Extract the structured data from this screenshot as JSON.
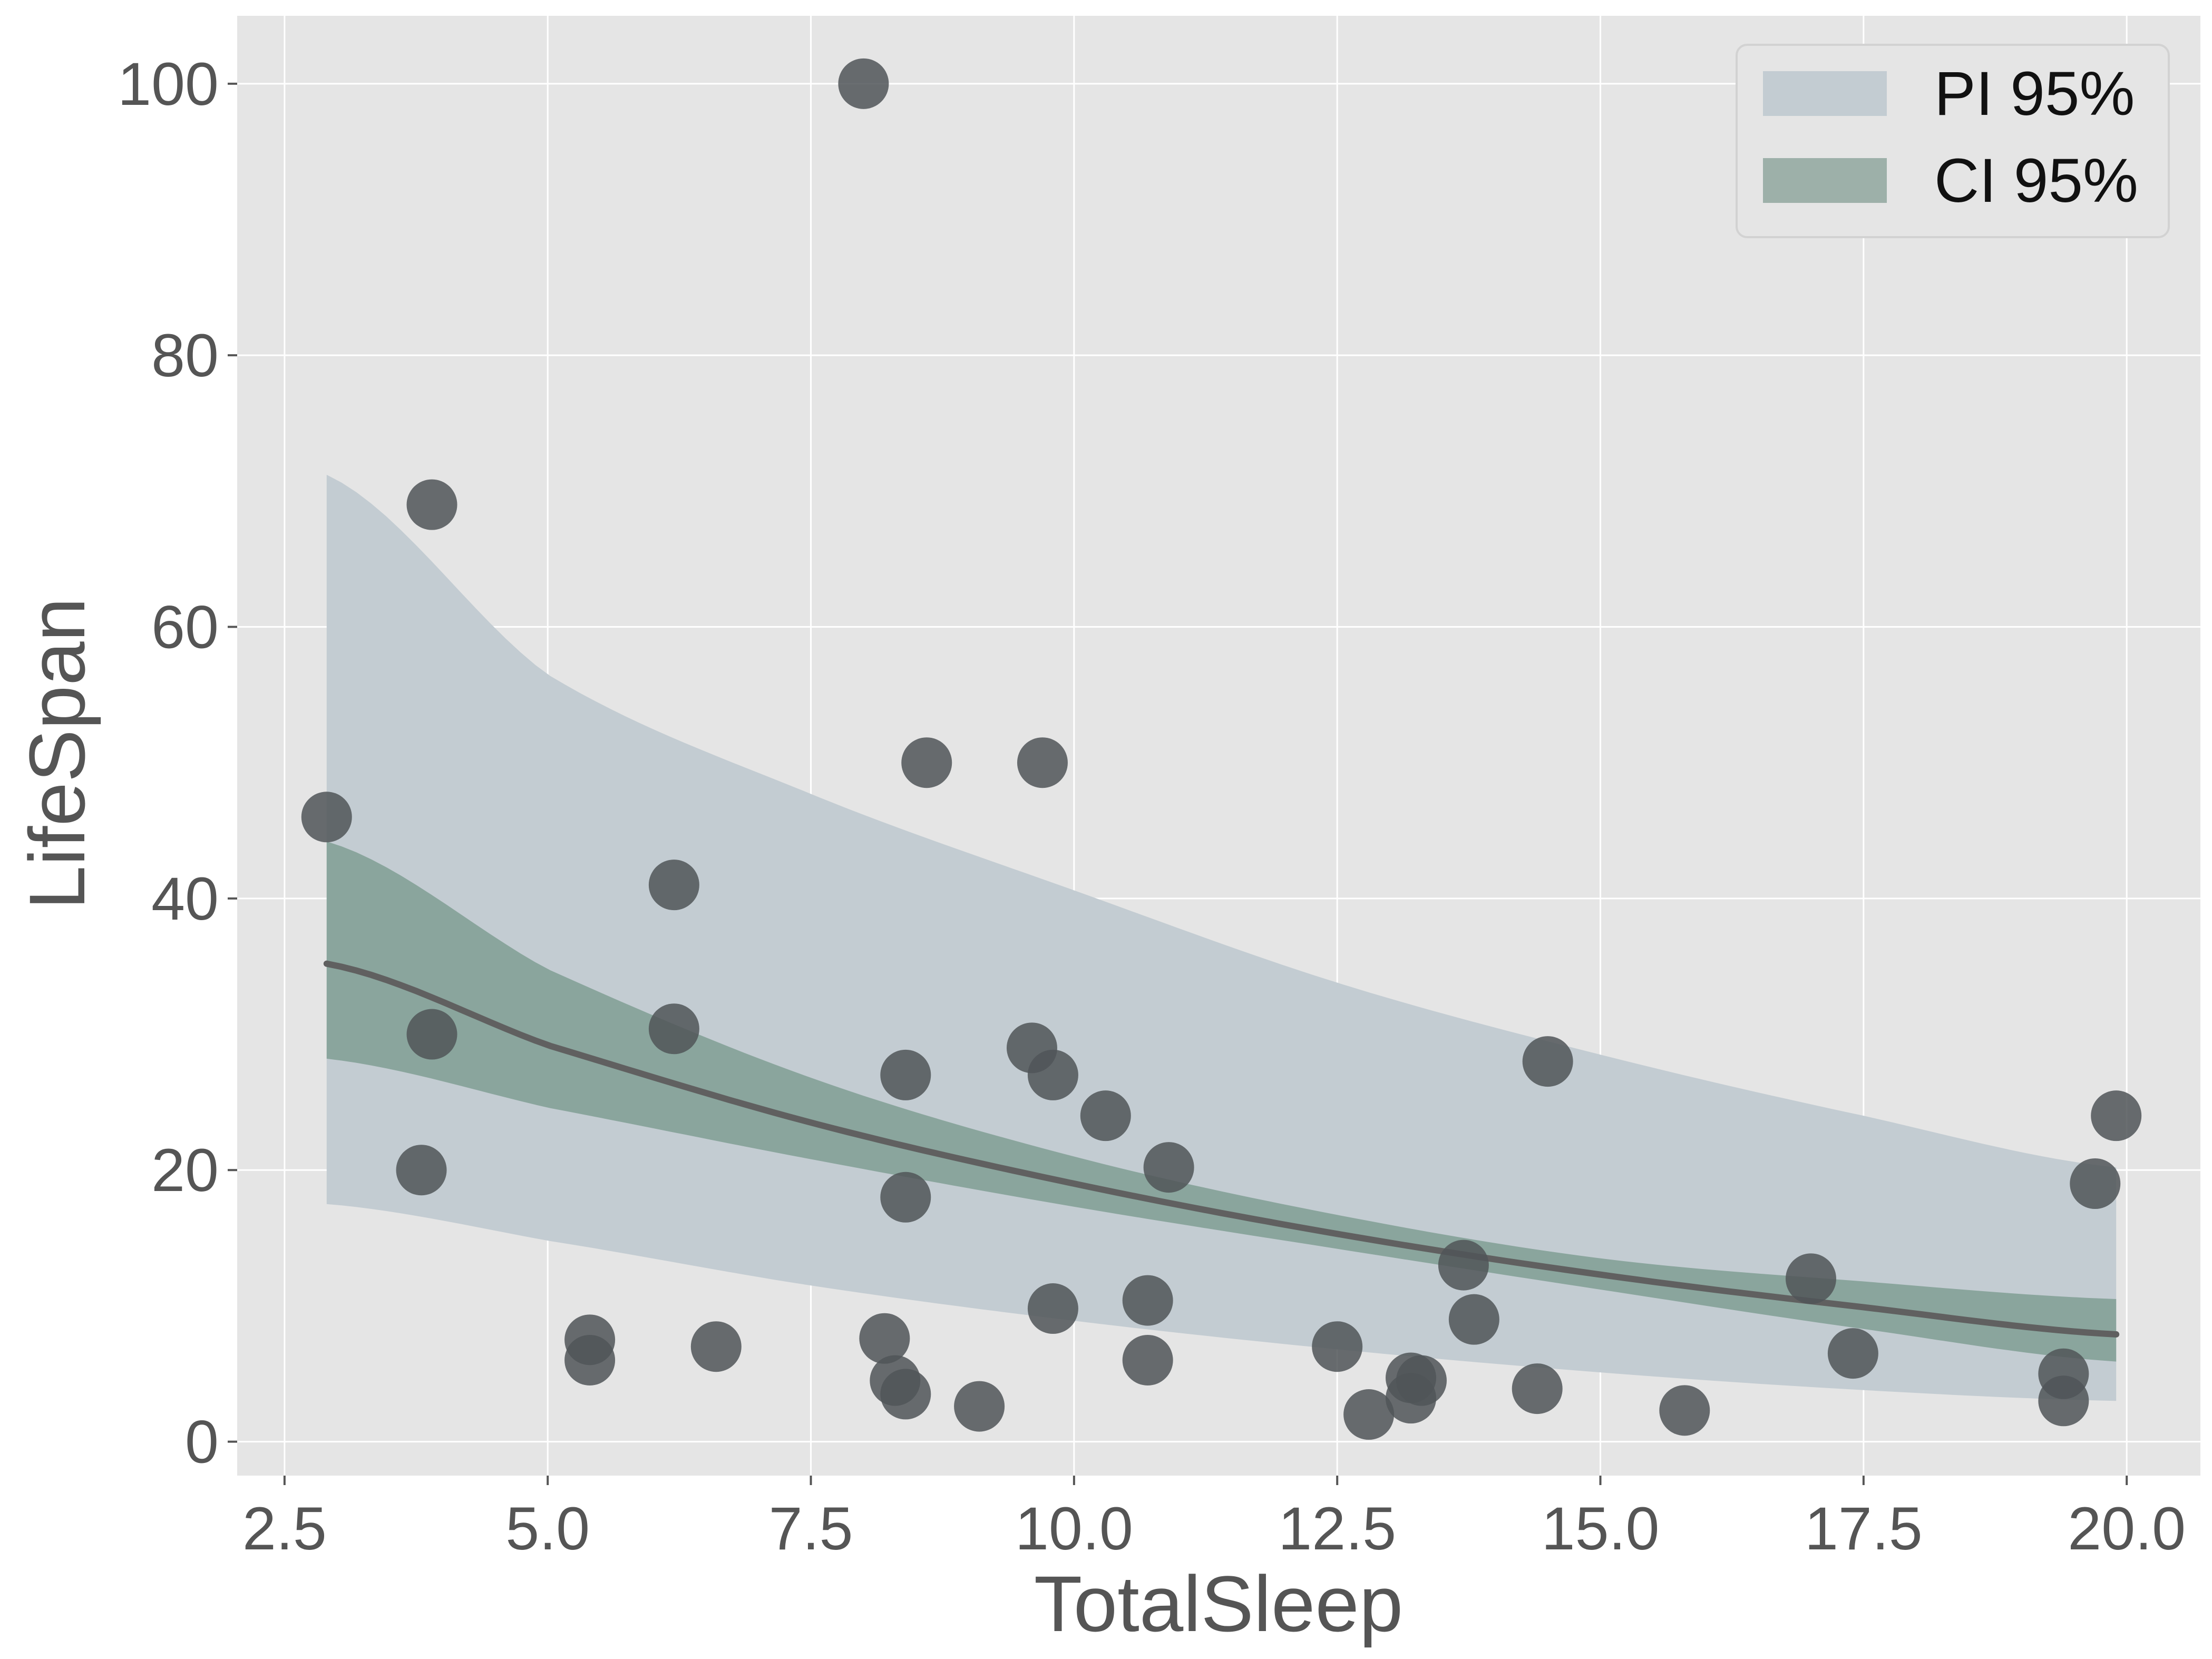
{
  "chart_data": {
    "type": "scatter",
    "xlabel": "TotalSleep",
    "ylabel": "LifeSpan",
    "xlim": [
      2.05,
      20.7
    ],
    "ylim": [
      -2.5,
      105
    ],
    "xticks": [
      2.5,
      5.0,
      7.5,
      10.0,
      12.5,
      15.0,
      17.5,
      20.0
    ],
    "xtick_labels": [
      "2.5",
      "5.0",
      "7.5",
      "10.0",
      "12.5",
      "15.0",
      "17.5",
      "20.0"
    ],
    "yticks": [
      0,
      20,
      40,
      60,
      80,
      100
    ],
    "ytick_labels": [
      "0",
      "20",
      "40",
      "60",
      "80",
      "100"
    ],
    "grid": true,
    "legend_position": "top-right",
    "colors": {
      "background": "#e5e5e5",
      "grid": "#ffffff",
      "pi_band": "#c3ccd2",
      "ci_band": "#8aa59d",
      "fit_line": "#606060",
      "points": "#505558"
    },
    "legend": [
      {
        "label": "PI 95%",
        "color": "#c3ccd2"
      },
      {
        "label": "CI 95%",
        "color": "#9db0a9"
      }
    ],
    "fit": {
      "x": [
        2.9,
        5.0,
        7.5,
        10.0,
        12.5,
        15.0,
        17.5,
        19.9
      ],
      "y": [
        35.2,
        29.2,
        23.5,
        19.0,
        15.3,
        12.3,
        9.9,
        7.9
      ],
      "ci_lower": [
        28.2,
        24.6,
        20.8,
        17.3,
        14.2,
        11.2,
        8.3,
        5.9
      ],
      "ci_upper": [
        44.2,
        34.8,
        26.8,
        21.0,
        16.7,
        13.5,
        11.8,
        10.5
      ],
      "pi_lower": [
        17.5,
        14.8,
        11.5,
        8.9,
        6.8,
        5.1,
        3.8,
        3.0
      ],
      "pi_upper": [
        71.2,
        56.5,
        47.7,
        40.6,
        33.8,
        28.5,
        24.0,
        20.2
      ]
    },
    "points": [
      {
        "x": 2.9,
        "y": 46
      },
      {
        "x": 3.8,
        "y": 20
      },
      {
        "x": 3.9,
        "y": 69
      },
      {
        "x": 3.9,
        "y": 30
      },
      {
        "x": 5.4,
        "y": 7.5
      },
      {
        "x": 5.4,
        "y": 6
      },
      {
        "x": 6.2,
        "y": 41
      },
      {
        "x": 6.2,
        "y": 30.4
      },
      {
        "x": 6.6,
        "y": 7
      },
      {
        "x": 8.0,
        "y": 100
      },
      {
        "x": 8.2,
        "y": 7.6
      },
      {
        "x": 8.3,
        "y": 4.5
      },
      {
        "x": 8.4,
        "y": 3.5
      },
      {
        "x": 8.4,
        "y": 27
      },
      {
        "x": 8.4,
        "y": 18
      },
      {
        "x": 8.6,
        "y": 50
      },
      {
        "x": 9.1,
        "y": 2.6
      },
      {
        "x": 9.6,
        "y": 29
      },
      {
        "x": 9.7,
        "y": 50
      },
      {
        "x": 9.8,
        "y": 27
      },
      {
        "x": 9.8,
        "y": 9.8
      },
      {
        "x": 10.3,
        "y": 24
      },
      {
        "x": 10.7,
        "y": 10.4
      },
      {
        "x": 10.7,
        "y": 6
      },
      {
        "x": 10.9,
        "y": 20.2
      },
      {
        "x": 12.5,
        "y": 7
      },
      {
        "x": 12.8,
        "y": 2
      },
      {
        "x": 13.2,
        "y": 4.7
      },
      {
        "x": 13.2,
        "y": 3.2
      },
      {
        "x": 13.3,
        "y": 4.5
      },
      {
        "x": 13.7,
        "y": 13
      },
      {
        "x": 13.8,
        "y": 9
      },
      {
        "x": 14.4,
        "y": 3.9
      },
      {
        "x": 14.5,
        "y": 28
      },
      {
        "x": 15.8,
        "y": 2.3
      },
      {
        "x": 17.0,
        "y": 12
      },
      {
        "x": 17.4,
        "y": 6.5
      },
      {
        "x": 19.4,
        "y": 5
      },
      {
        "x": 19.4,
        "y": 3
      },
      {
        "x": 19.7,
        "y": 19
      },
      {
        "x": 19.9,
        "y": 24
      }
    ]
  }
}
